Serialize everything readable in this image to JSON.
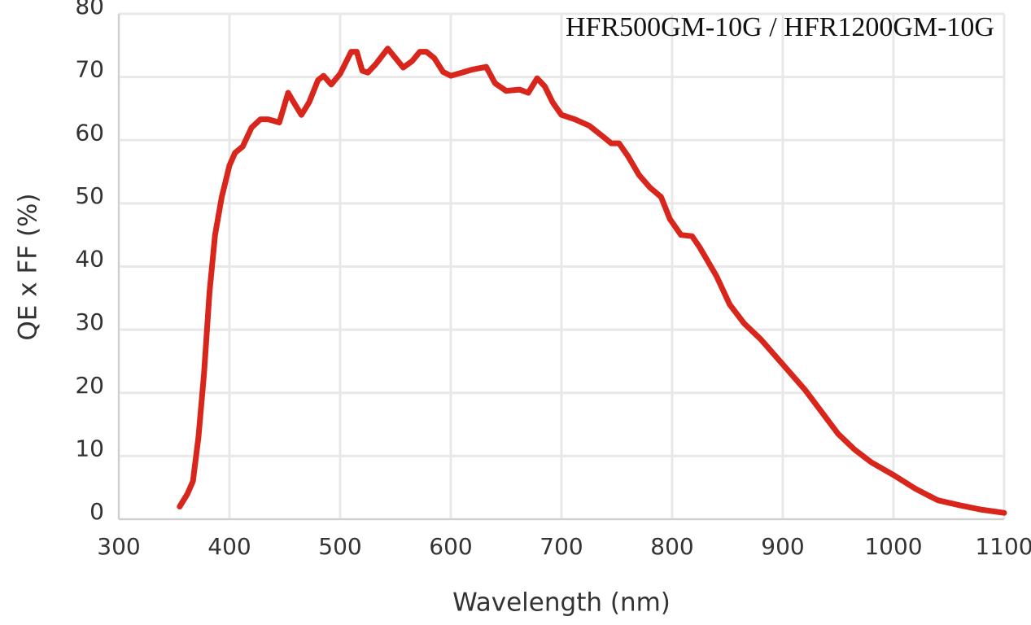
{
  "chart_data": {
    "type": "line",
    "title": "HFR500GM-10G / HFR1200GM-10G",
    "xlabel": "Wavelength (nm)",
    "ylabel": "QE x FF (%)",
    "color": "#d9261c",
    "x": [
      355,
      362,
      367,
      372,
      377,
      382,
      387,
      393,
      400,
      405,
      412,
      420,
      428,
      435,
      445,
      453,
      458,
      465,
      472,
      480,
      485,
      492,
      500,
      510,
      515,
      520,
      525,
      532,
      543,
      550,
      557,
      565,
      572,
      578,
      585,
      593,
      600,
      610,
      620,
      632,
      640,
      650,
      662,
      670,
      678,
      685,
      692,
      700,
      712,
      725,
      738,
      745,
      752,
      760,
      770,
      780,
      790,
      798,
      808,
      818,
      825,
      840,
      852,
      865,
      880,
      900,
      920,
      935,
      950,
      965,
      980,
      1000,
      1020,
      1040,
      1060,
      1080,
      1100
    ],
    "values": [
      2,
      4,
      6,
      13,
      23,
      36,
      45,
      51,
      56,
      58,
      59,
      62,
      63.3,
      63.3,
      62.8,
      67.5,
      66,
      64,
      66,
      69.5,
      70.2,
      68.8,
      70.5,
      74,
      74,
      71,
      70.7,
      72,
      74.5,
      73,
      71.5,
      72.5,
      74,
      74,
      73,
      70.8,
      70.2,
      70.7,
      71.2,
      71.6,
      69,
      67.8,
      68,
      67.5,
      69.8,
      68.5,
      66,
      64,
      63.3,
      62.3,
      60.5,
      59.5,
      59.5,
      57.5,
      54.5,
      52.5,
      51,
      47.5,
      45,
      44.8,
      43,
      38.5,
      34,
      31,
      28.5,
      24.5,
      20.5,
      17,
      13.5,
      11,
      9,
      7,
      4.8,
      3,
      2.2,
      1.5,
      1.0
    ],
    "xlim": [
      300,
      1100
    ],
    "xticks": [
      300,
      400,
      500,
      600,
      700,
      800,
      900,
      1000,
      1100
    ],
    "ylim": [
      0,
      80
    ],
    "yticks": [
      0,
      10,
      20,
      30,
      40,
      50,
      60,
      70,
      80
    ],
    "grid": true
  }
}
